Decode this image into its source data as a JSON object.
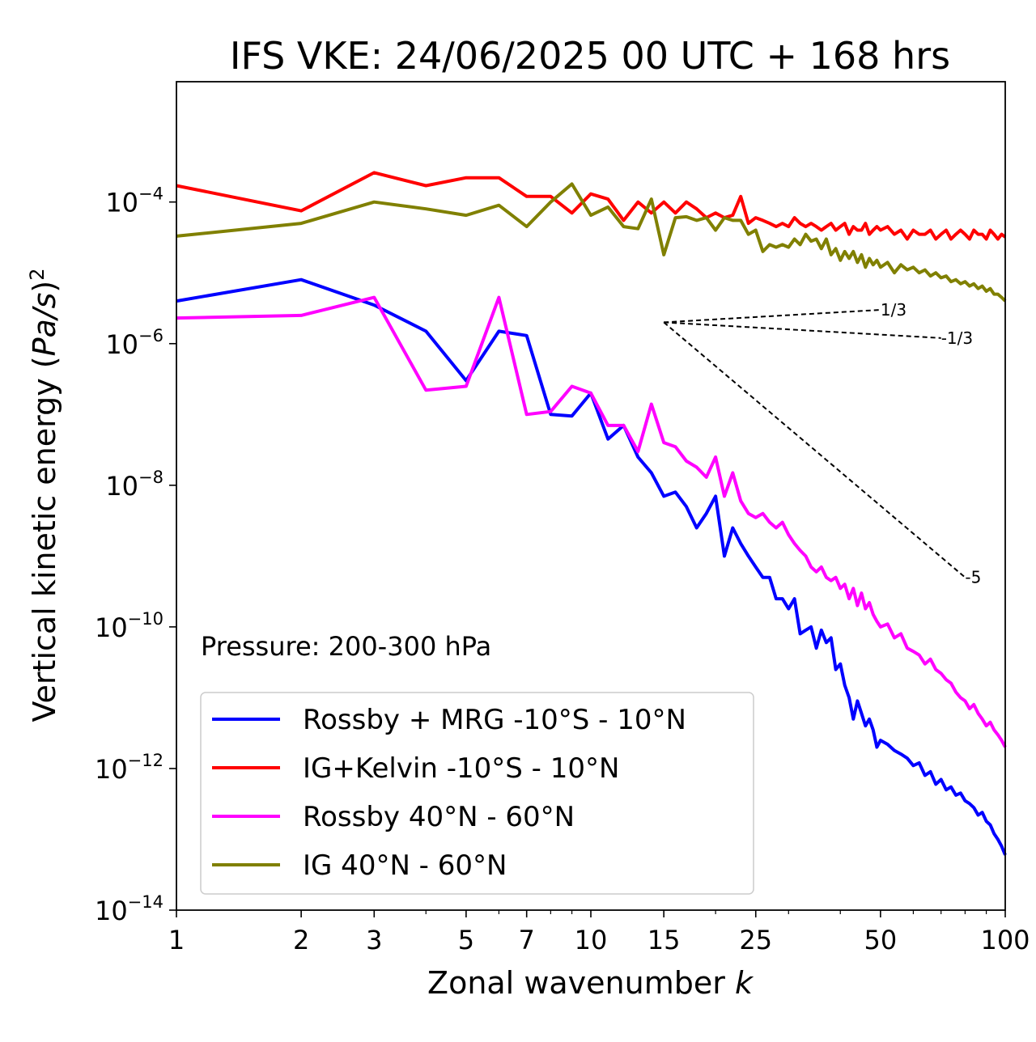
{
  "chart_data": {
    "type": "line",
    "title": "IFS VKE: 24/06/2025 00 UTC + 168 hrs",
    "xlabel_main": "Zonal wavenumber ",
    "xlabel_italic": "k",
    "ylabel_main": "Vertical kinetic energy (",
    "ylabel_italic": "Pa/s",
    "ylabel_end": ")",
    "ylabel_sup": "2",
    "x_scale": "log",
    "y_scale": "log",
    "xlim": [
      1,
      100
    ],
    "ylim": [
      1e-14,
      0.005
    ],
    "x_ticks": [
      1,
      2,
      3,
      5,
      7,
      10,
      15,
      25,
      50,
      100
    ],
    "x_tick_labels": [
      "1",
      "2",
      "3",
      "5",
      "7",
      "10",
      "15",
      "25",
      "50",
      "100"
    ],
    "y_ticks": [
      {
        "value": 1e-14,
        "base": "10",
        "exp": "−14"
      },
      {
        "value": 1e-12,
        "base": "10",
        "exp": "−12"
      },
      {
        "value": 1e-10,
        "base": "10",
        "exp": "−10"
      },
      {
        "value": 1e-08,
        "base": "10",
        "exp": "−8"
      },
      {
        "value": 1e-06,
        "base": "10",
        "exp": "−6"
      },
      {
        "value": 0.0001,
        "base": "10",
        "exp": "−4"
      }
    ],
    "annotation": "Pressure: 200-300 hPa",
    "legend_position": "lower-left",
    "slope_lines": [
      {
        "label": "1/3",
        "x": [
          15,
          50
        ],
        "y": [
          2e-06,
          3e-06
        ]
      },
      {
        "label": "-1/3",
        "x": [
          15,
          70
        ],
        "y": [
          2e-06,
          1.2e-06
        ]
      },
      {
        "label": "-5",
        "x": [
          15,
          80
        ],
        "y": [
          2e-06,
          5e-10
        ]
      }
    ],
    "series": [
      {
        "name": "Rossby + MRG -10°S - 10°N",
        "color": "#0000ff",
        "x": [
          1,
          2,
          3,
          4,
          5,
          6,
          7,
          8,
          9,
          10,
          11,
          12,
          13,
          14,
          15,
          16,
          17,
          18,
          19,
          20,
          21,
          22,
          23,
          24,
          25,
          26,
          27,
          28,
          29,
          30,
          31,
          32,
          33,
          34,
          35,
          36,
          37,
          38,
          39,
          40,
          41,
          42,
          43,
          44,
          45,
          46,
          47,
          48,
          49,
          50,
          52,
          54,
          56,
          58,
          60,
          62,
          64,
          66,
          68,
          70,
          72,
          74,
          76,
          78,
          80,
          82,
          84,
          86,
          88,
          90,
          92,
          94,
          96,
          98,
          100
        ],
        "y": [
          4e-06,
          8e-06,
          3.5e-06,
          1.5e-06,
          3e-07,
          1.5e-06,
          1.3e-06,
          1e-07,
          9.5e-08,
          2e-07,
          4.5e-08,
          7e-08,
          2.5e-08,
          1.5e-08,
          7e-09,
          8e-09,
          5e-09,
          2.5e-09,
          4e-09,
          7e-09,
          1e-09,
          2.5e-09,
          1.5e-09,
          1e-09,
          7e-10,
          5e-10,
          5e-10,
          2.5e-10,
          2.5e-10,
          1.8e-10,
          2.5e-10,
          8e-11,
          9e-11,
          1e-10,
          5e-11,
          9e-11,
          6e-11,
          7e-11,
          2.5e-11,
          3e-11,
          1.5e-11,
          1e-11,
          5e-12,
          9e-12,
          6e-12,
          4e-12,
          5e-12,
          3.5e-12,
          2e-12,
          2.5e-12,
          2.2e-12,
          1.8e-12,
          1.6e-12,
          1.4e-12,
          1.1e-12,
          1.2e-12,
          8e-13,
          9e-13,
          6e-13,
          7e-13,
          5e-13,
          5.5e-13,
          4.2e-13,
          4.5e-13,
          3.5e-13,
          3.2e-13,
          2.8e-13,
          2.2e-13,
          2.4e-13,
          1.8e-13,
          1.6e-13,
          1.2e-13,
          1e-13,
          8e-14,
          6e-14
        ]
      },
      {
        "name": "IG+Kelvin -10°S - 10°N",
        "color": "#ff0000",
        "x": [
          1,
          2,
          3,
          4,
          5,
          6,
          7,
          8,
          9,
          10,
          11,
          12,
          13,
          14,
          15,
          16,
          17,
          18,
          19,
          20,
          21,
          22,
          23,
          24,
          25,
          26,
          27,
          28,
          29,
          30,
          31,
          32,
          33,
          34,
          35,
          36,
          37,
          38,
          39,
          40,
          41,
          42,
          43,
          44,
          45,
          46,
          47,
          48,
          49,
          50,
          52,
          54,
          56,
          58,
          60,
          62,
          64,
          66,
          68,
          70,
          72,
          74,
          76,
          78,
          80,
          82,
          84,
          86,
          88,
          90,
          92,
          94,
          96,
          98,
          100
        ],
        "y": [
          0.00017,
          7.5e-05,
          0.00026,
          0.00017,
          0.00022,
          0.00022,
          0.00012,
          0.00012,
          7e-05,
          0.00013,
          0.00011,
          5.5e-05,
          0.0001,
          7e-05,
          0.0001,
          7e-05,
          0.0001,
          8e-05,
          6e-05,
          7e-05,
          6e-05,
          6.5e-05,
          0.00012,
          5e-05,
          6e-05,
          5.5e-05,
          5e-05,
          4.5e-05,
          5e-05,
          4.5e-05,
          6e-05,
          5e-05,
          4.5e-05,
          5e-05,
          4.5e-05,
          4e-05,
          4.5e-05,
          5e-05,
          4e-05,
          4.5e-05,
          5e-05,
          3.5e-05,
          4.5e-05,
          4e-05,
          4e-05,
          5e-05,
          3.5e-05,
          4e-05,
          4.5e-05,
          4e-05,
          4.5e-05,
          3.5e-05,
          4e-05,
          3e-05,
          4e-05,
          3.5e-05,
          3.5e-05,
          4e-05,
          3e-05,
          3.5e-05,
          4e-05,
          3e-05,
          3.5e-05,
          4e-05,
          3.5e-05,
          3e-05,
          4e-05,
          3.5e-05,
          3.5e-05,
          3e-05,
          4e-05,
          3.5e-05,
          3e-05,
          3.5e-05,
          3.2e-05
        ]
      },
      {
        "name": "Rossby 40°N - 60°N",
        "color": "#ff00ff",
        "x": [
          1,
          2,
          3,
          4,
          5,
          6,
          7,
          8,
          9,
          10,
          11,
          12,
          13,
          14,
          15,
          16,
          17,
          18,
          19,
          20,
          21,
          22,
          23,
          24,
          25,
          26,
          27,
          28,
          29,
          30,
          31,
          32,
          33,
          34,
          35,
          36,
          37,
          38,
          39,
          40,
          41,
          42,
          43,
          44,
          45,
          46,
          47,
          48,
          49,
          50,
          52,
          54,
          56,
          58,
          60,
          62,
          64,
          66,
          68,
          70,
          72,
          74,
          76,
          78,
          80,
          82,
          84,
          86,
          88,
          90,
          92,
          94,
          96,
          98,
          100
        ],
        "y": [
          2.3e-06,
          2.5e-06,
          4.5e-06,
          2.2e-07,
          2.5e-07,
          4.5e-06,
          1e-07,
          1.1e-07,
          2.5e-07,
          2e-07,
          7e-08,
          7e-08,
          3e-08,
          1.4e-07,
          4e-08,
          3.5e-08,
          2.2e-08,
          1.8e-08,
          1.3e-08,
          2.5e-08,
          7e-09,
          1.5e-08,
          6e-09,
          4e-09,
          3.5e-09,
          4e-09,
          3e-09,
          2.5e-09,
          3e-09,
          2e-09,
          1.5e-09,
          1.2e-09,
          1e-09,
          7e-10,
          6e-10,
          7e-10,
          5e-10,
          4.5e-10,
          5e-10,
          3.5e-10,
          4e-10,
          2.5e-10,
          3.5e-10,
          2e-10,
          3e-10,
          1.8e-10,
          2.2e-10,
          1.5e-10,
          1.2e-10,
          1e-10,
          1.1e-10,
          7e-11,
          8e-11,
          5e-11,
          4.5e-11,
          4e-11,
          3e-11,
          3.5e-11,
          2.5e-11,
          2.2e-11,
          1.8e-11,
          1.6e-11,
          1.2e-11,
          1e-11,
          9e-12,
          7e-12,
          8e-12,
          6e-12,
          5e-12,
          4e-12,
          4.5e-12,
          3.5e-12,
          3e-12,
          2.5e-12,
          2e-12
        ]
      },
      {
        "name": "IG 40°N - 60°N",
        "color": "#808000",
        "x": [
          1,
          2,
          3,
          4,
          5,
          6,
          7,
          8,
          9,
          10,
          11,
          12,
          13,
          14,
          15,
          16,
          17,
          18,
          19,
          20,
          21,
          22,
          23,
          24,
          25,
          26,
          27,
          28,
          29,
          30,
          31,
          32,
          33,
          34,
          35,
          36,
          37,
          38,
          39,
          40,
          41,
          42,
          43,
          44,
          45,
          46,
          47,
          48,
          49,
          50,
          52,
          54,
          56,
          58,
          60,
          62,
          64,
          66,
          68,
          70,
          72,
          74,
          76,
          78,
          80,
          82,
          84,
          86,
          88,
          90,
          92,
          94,
          96,
          98,
          100
        ],
        "y": [
          3.3e-05,
          5e-05,
          0.0001,
          8e-05,
          6.5e-05,
          9e-05,
          4.5e-05,
          0.0001,
          0.00018,
          6.5e-05,
          8.5e-05,
          4.5e-05,
          4.2e-05,
          0.00011,
          1.8e-05,
          6e-05,
          6.2e-05,
          5.5e-05,
          6e-05,
          4e-05,
          6e-05,
          5.5e-05,
          5.5e-05,
          3.5e-05,
          4e-05,
          2e-05,
          2.5e-05,
          2.3e-05,
          2.5e-05,
          2.3e-05,
          3e-05,
          2.5e-05,
          3.5e-05,
          2.8e-05,
          3e-05,
          2.2e-05,
          3e-05,
          1.8e-05,
          2.2e-05,
          1.5e-05,
          2e-05,
          1.6e-05,
          2e-05,
          1.4e-05,
          1.8e-05,
          1.2e-05,
          1.6e-05,
          1.3e-05,
          1.5e-05,
          1.2e-05,
          1.4e-05,
          1e-05,
          1.3e-05,
          1.1e-05,
          1.2e-05,
          1e-05,
          1.1e-05,
          9e-06,
          1e-05,
          8.5e-06,
          9e-06,
          7.5e-06,
          8e-06,
          7e-06,
          7.5e-06,
          6.5e-06,
          7e-06,
          6e-06,
          6.5e-06,
          5.5e-06,
          6e-06,
          5e-06,
          5e-06,
          4.5e-06,
          4e-06
        ]
      }
    ]
  }
}
